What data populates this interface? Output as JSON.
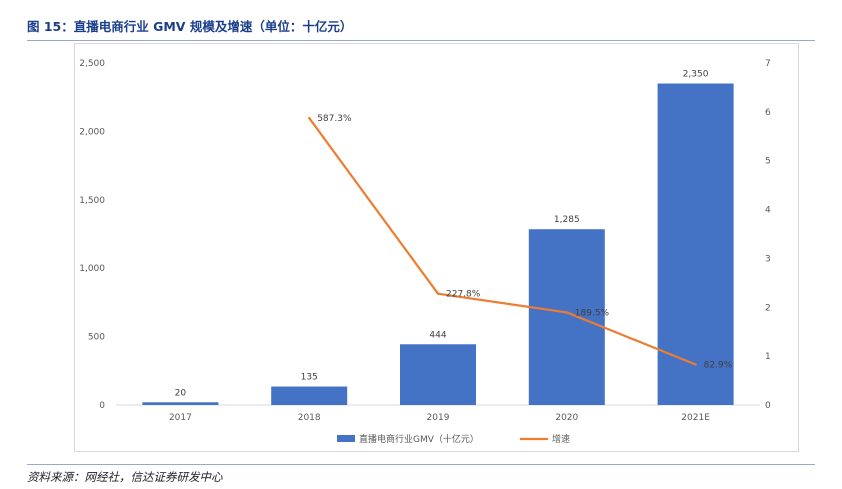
{
  "figure": {
    "title": "图 15：直播电商行业 GMV 规模及增速（单位：十亿元）",
    "source": "资料来源：网经社，信达证券研发中心"
  },
  "colors": {
    "bar": "#4472c4",
    "line": "#ed7d31",
    "title": "#1b3e8a",
    "axis_text": "#595959",
    "grid": "#d9d9d9"
  },
  "chart_data": {
    "type": "bar",
    "categories": [
      "2017",
      "2018",
      "2019",
      "2020",
      "2021E"
    ],
    "series": [
      {
        "name": "直播电商行业GMV（十亿元）",
        "type": "bar",
        "axis": "left",
        "values": [
          20,
          135,
          444,
          1285,
          2350
        ],
        "labels": [
          "20",
          "135",
          "444",
          "1,285",
          "2,350"
        ]
      },
      {
        "name": "增速",
        "type": "line",
        "axis": "right",
        "values": [
          null,
          5.873,
          2.278,
          1.895,
          0.829
        ],
        "labels": [
          "",
          "587.3%",
          "227.8%",
          "189.5%",
          "82.9%"
        ]
      }
    ],
    "y_left": {
      "ylim": [
        0,
        2500
      ],
      "ticks": [
        0,
        500,
        1000,
        1500,
        2000,
        2500
      ],
      "tick_labels": [
        "0",
        "500",
        "1,000",
        "1,500",
        "2,000",
        "2,500"
      ]
    },
    "y_right": {
      "ylim": [
        0,
        7
      ],
      "ticks": [
        0,
        1,
        2,
        3,
        4,
        5,
        6,
        7
      ],
      "tick_labels": [
        "0",
        "1",
        "2",
        "3",
        "4",
        "5",
        "6",
        "7"
      ]
    },
    "grid": false,
    "legend_position": "bottom"
  }
}
